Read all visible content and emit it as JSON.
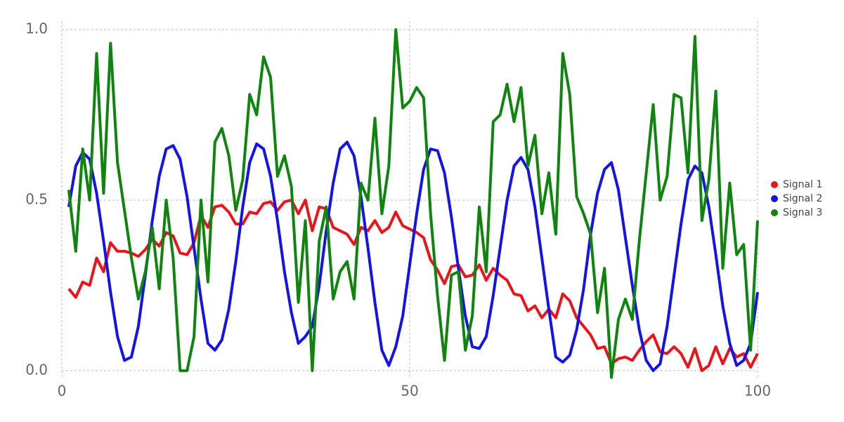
{
  "chart_data": {
    "type": "line",
    "x": [
      1,
      2,
      3,
      4,
      5,
      6,
      7,
      8,
      9,
      10,
      11,
      12,
      13,
      14,
      15,
      16,
      17,
      18,
      19,
      20,
      21,
      22,
      23,
      24,
      25,
      26,
      27,
      28,
      29,
      30,
      31,
      32,
      33,
      34,
      35,
      36,
      37,
      38,
      39,
      40,
      41,
      42,
      43,
      44,
      45,
      46,
      47,
      48,
      49,
      50,
      51,
      52,
      53,
      54,
      55,
      56,
      57,
      58,
      59,
      60,
      61,
      62,
      63,
      64,
      65,
      66,
      67,
      68,
      69,
      70,
      71,
      72,
      73,
      74,
      75,
      76,
      77,
      78,
      79,
      80,
      81,
      82,
      83,
      84,
      85,
      86,
      87,
      88,
      89,
      90,
      91,
      92,
      93,
      94,
      95,
      96,
      97,
      98,
      99,
      100
    ],
    "series": [
      {
        "name": "Signal 1",
        "color": "#e8161b",
        "values": [
          0.24,
          0.215,
          0.26,
          0.25,
          0.33,
          0.29,
          0.375,
          0.35,
          0.35,
          0.345,
          0.335,
          0.355,
          0.385,
          0.365,
          0.405,
          0.395,
          0.345,
          0.34,
          0.375,
          0.455,
          0.42,
          0.48,
          0.485,
          0.465,
          0.43,
          0.43,
          0.465,
          0.46,
          0.49,
          0.495,
          0.47,
          0.495,
          0.5,
          0.46,
          0.5,
          0.41,
          0.48,
          0.475,
          0.42,
          0.41,
          0.4,
          0.37,
          0.42,
          0.41,
          0.44,
          0.405,
          0.42,
          0.465,
          0.425,
          0.415,
          0.405,
          0.39,
          0.325,
          0.295,
          0.255,
          0.305,
          0.31,
          0.275,
          0.28,
          0.31,
          0.265,
          0.3,
          0.28,
          0.265,
          0.225,
          0.22,
          0.175,
          0.19,
          0.155,
          0.18,
          0.155,
          0.225,
          0.205,
          0.155,
          0.13,
          0.105,
          0.065,
          0.07,
          0.02,
          0.035,
          0.04,
          0.03,
          0.06,
          0.085,
          0.105,
          0.055,
          0.05,
          0.07,
          0.05,
          0.01,
          0.065,
          0.0,
          0.015,
          0.07,
          0.02,
          0.065,
          0.04,
          0.05,
          0.01,
          0.05
        ]
      },
      {
        "name": "Signal 2",
        "color": "#1414e6",
        "values": [
          0.48,
          0.6,
          0.64,
          0.62,
          0.52,
          0.38,
          0.23,
          0.1,
          0.03,
          0.04,
          0.13,
          0.28,
          0.44,
          0.57,
          0.65,
          0.66,
          0.62,
          0.51,
          0.36,
          0.21,
          0.08,
          0.06,
          0.09,
          0.18,
          0.32,
          0.48,
          0.61,
          0.665,
          0.65,
          0.57,
          0.44,
          0.29,
          0.17,
          0.08,
          0.1,
          0.13,
          0.25,
          0.41,
          0.55,
          0.65,
          0.67,
          0.63,
          0.51,
          0.36,
          0.2,
          0.06,
          0.015,
          0.07,
          0.16,
          0.31,
          0.46,
          0.59,
          0.65,
          0.645,
          0.58,
          0.45,
          0.3,
          0.16,
          0.07,
          0.065,
          0.1,
          0.22,
          0.36,
          0.5,
          0.6,
          0.625,
          0.59,
          0.48,
          0.33,
          0.18,
          0.04,
          0.025,
          0.045,
          0.12,
          0.24,
          0.4,
          0.52,
          0.59,
          0.61,
          0.53,
          0.39,
          0.25,
          0.12,
          0.03,
          0.0,
          0.02,
          0.13,
          0.28,
          0.43,
          0.56,
          0.6,
          0.58,
          0.48,
          0.34,
          0.19,
          0.08,
          0.015,
          0.03,
          0.08,
          0.23
        ]
      },
      {
        "name": "Signal 3",
        "color": "#0f840f",
        "values": [
          0.53,
          0.35,
          0.65,
          0.5,
          0.93,
          0.52,
          0.96,
          0.61,
          0.47,
          0.33,
          0.21,
          0.29,
          0.42,
          0.24,
          0.5,
          0.33,
          0.0,
          0.0,
          0.1,
          0.5,
          0.26,
          0.67,
          0.71,
          0.63,
          0.47,
          0.56,
          0.81,
          0.75,
          0.92,
          0.86,
          0.57,
          0.63,
          0.54,
          0.2,
          0.44,
          0.0,
          0.38,
          0.48,
          0.21,
          0.29,
          0.32,
          0.21,
          0.55,
          0.5,
          0.74,
          0.46,
          0.6,
          1.0,
          0.77,
          0.79,
          0.83,
          0.8,
          0.46,
          0.22,
          0.03,
          0.28,
          0.29,
          0.06,
          0.16,
          0.48,
          0.29,
          0.73,
          0.75,
          0.84,
          0.73,
          0.83,
          0.6,
          0.69,
          0.46,
          0.58,
          0.4,
          0.93,
          0.81,
          0.51,
          0.46,
          0.4,
          0.17,
          0.3,
          -0.02,
          0.15,
          0.21,
          0.15,
          0.38,
          0.58,
          0.78,
          0.5,
          0.57,
          0.81,
          0.8,
          0.58,
          0.98,
          0.44,
          0.56,
          0.82,
          0.3,
          0.55,
          0.34,
          0.37,
          0.06,
          0.44
        ]
      }
    ],
    "xlim": [
      0,
      100
    ],
    "xticks": [
      0,
      50,
      100
    ],
    "ylim": [
      -0.025,
      1.025
    ],
    "yticks": [
      {
        "value": 0,
        "label": "0.0"
      },
      {
        "value": 0.5,
        "label": "0.5"
      },
      {
        "value": 1,
        "label": "1.0"
      }
    ],
    "grid": true,
    "legend": "right"
  }
}
